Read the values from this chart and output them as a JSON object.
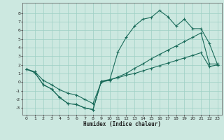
{
  "xlabel": "Humidex (Indice chaleur)",
  "bg_color": "#cce8e0",
  "grid_color": "#9ecfc4",
  "line_color": "#1a6b5a",
  "xlim": [
    -0.5,
    23.5
  ],
  "ylim": [
    -3.8,
    9.2
  ],
  "xticks": [
    0,
    1,
    2,
    3,
    4,
    5,
    6,
    7,
    8,
    9,
    10,
    11,
    12,
    13,
    14,
    15,
    16,
    17,
    18,
    19,
    20,
    21,
    22,
    23
  ],
  "yticks": [
    -3,
    -2,
    -1,
    0,
    1,
    2,
    3,
    4,
    5,
    6,
    7,
    8
  ],
  "line1_x": [
    0,
    1,
    2,
    3,
    4,
    5,
    6,
    7,
    8,
    9,
    10,
    11,
    12,
    13,
    14,
    15,
    16,
    17,
    18,
    19,
    20,
    21,
    22,
    23
  ],
  "line1_y": [
    1.5,
    1.1,
    -0.3,
    -0.8,
    -1.8,
    -2.5,
    -2.6,
    -3.0,
    -3.2,
    0.1,
    0.2,
    3.5,
    5.2,
    6.5,
    7.3,
    7.5,
    8.3,
    7.6,
    6.5,
    7.3,
    6.2,
    6.2,
    4.5,
    2.0
  ],
  "line2_x": [
    0,
    1,
    2,
    3,
    4,
    5,
    6,
    7,
    8,
    9,
    10,
    11,
    12,
    13,
    14,
    15,
    16,
    17,
    18,
    19,
    20,
    21,
    22,
    23
  ],
  "line2_y": [
    1.5,
    1.2,
    0.2,
    -0.3,
    -0.9,
    -1.3,
    -1.5,
    -2.0,
    -2.5,
    0.0,
    0.2,
    0.6,
    1.0,
    1.6,
    2.1,
    2.7,
    3.2,
    3.7,
    4.2,
    4.7,
    5.2,
    5.7,
    2.1,
    2.1
  ],
  "line3_x": [
    0,
    1,
    2,
    3,
    4,
    5,
    6,
    7,
    8,
    9,
    10,
    11,
    12,
    13,
    14,
    15,
    16,
    17,
    18,
    19,
    20,
    21,
    22,
    23
  ],
  "line3_y": [
    1.5,
    1.1,
    -0.3,
    -0.8,
    -1.8,
    -2.5,
    -2.6,
    -3.0,
    -3.2,
    0.1,
    0.3,
    0.5,
    0.8,
    1.0,
    1.3,
    1.6,
    1.9,
    2.2,
    2.5,
    2.8,
    3.1,
    3.4,
    1.8,
    2.0
  ]
}
